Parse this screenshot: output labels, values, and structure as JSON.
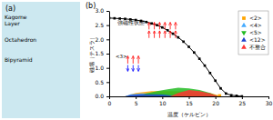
{
  "chart_data": [
    {
      "type": "diagram",
      "title": "(a)",
      "color": "#cce8f0",
      "annotations": [
        "Kagome\nLayer",
        "Octahedron",
        "Bipyramid"
      ]
    },
    {
      "type": "line",
      "title": "(b)",
      "x_label": "温度（ケルビン）",
      "y_label": "磁場（テスラ）",
      "xlim": [
        0,
        30
      ],
      "ylim": [
        0.0,
        3.0
      ],
      "xticks": [
        0,
        5,
        10,
        15,
        20,
        25,
        30
      ],
      "yticks": [
        {
          "value": 0.0,
          "label": "0.0"
        },
        0.5,
        {
          "value": 1.0,
          "label": "1.0"
        },
        1.5,
        {
          "value": 2.0,
          "label": "2.0"
        },
        2.5,
        {
          "value": 3.0,
          "label": "3.0"
        }
      ],
      "grid": false,
      "legend": "upper-right",
      "series": [
        {
          "name": "<2>",
          "type": "area",
          "color": "#FFA500",
          "marker": "square",
          "x": [
            3.0,
            5.0,
            8.0,
            12.0,
            16.0,
            19.0,
            20.5,
            21.0
          ],
          "values": [
            0.0,
            0.12,
            0.18,
            0.18,
            0.16,
            0.12,
            0.04,
            0.0
          ]
        },
        {
          "name": "<4>",
          "type": "area",
          "color": "#44AAFF",
          "marker": "triangle-up",
          "x": [
            3.0,
            4.0,
            6.0,
            9.0,
            11.0,
            12.5,
            13.0
          ],
          "values": [
            0.0,
            0.07,
            0.1,
            0.1,
            0.09,
            0.04,
            0.0
          ]
        },
        {
          "name": "<5>",
          "type": "area",
          "color": "#22BB22",
          "marker": "triangle-down",
          "x": [
            5.5,
            7.0,
            9.0,
            11.0,
            13.0,
            15.0,
            17.0,
            19.0,
            20.0,
            20.5
          ],
          "values": [
            0.0,
            0.1,
            0.18,
            0.25,
            0.3,
            0.28,
            0.22,
            0.12,
            0.04,
            0.0
          ]
        },
        {
          "name": "<12>",
          "type": "area",
          "color": "#2244CC",
          "marker": "triangle-up",
          "x": [
            3.0,
            4.0,
            6.0,
            8.0,
            10.0,
            11.5,
            12.0
          ],
          "values": [
            0.0,
            0.05,
            0.07,
            0.07,
            0.065,
            0.03,
            0.0
          ]
        },
        {
          "name": "不整合",
          "type": "area",
          "color": "#FF3333",
          "marker": "triangle-up",
          "x": [
            11.5,
            13.0,
            15.0,
            17.0,
            19.0,
            20.0,
            20.5
          ],
          "values": [
            0.0,
            0.12,
            0.22,
            0.18,
            0.1,
            0.04,
            0.0
          ]
        },
        {
          "type": "scatter",
          "color": "#FFA500",
          "marker": "square",
          "x": [
            20.8
          ],
          "values": [
            0.02
          ]
        },
        {
          "type": "line",
          "color": "#000000",
          "marker": "square",
          "x": [
            0,
            1,
            2,
            3,
            4,
            5,
            6,
            7,
            8,
            9,
            10,
            11,
            12,
            13,
            14,
            15,
            16,
            17,
            18,
            19,
            20,
            21,
            22,
            23,
            24,
            25
          ],
          "values": [
            2.75,
            2.74,
            2.73,
            2.72,
            2.7,
            2.68,
            2.65,
            2.61,
            2.56,
            2.5,
            2.42,
            2.32,
            2.2,
            2.07,
            1.92,
            1.74,
            1.54,
            1.32,
            1.08,
            0.82,
            0.55,
            0.28,
            0.1,
            0.04,
            0.02,
            0.0
          ]
        }
      ],
      "annotations": [
        {
          "text": "強磁性状態",
          "x": 1.5,
          "y": 2.65
        },
        {
          "text": "<3>",
          "x": 1.2,
          "y": 1.38
        }
      ],
      "arrows": [
        {
          "x": 7.5,
          "from": 2.05,
          "to": 2.3,
          "color": "red"
        },
        {
          "x": 7.5,
          "from": 2.35,
          "to": 2.6,
          "color": "red"
        },
        {
          "x": 8.5,
          "from": 2.05,
          "to": 2.3,
          "color": "red"
        },
        {
          "x": 8.5,
          "from": 2.35,
          "to": 2.6,
          "color": "red"
        },
        {
          "x": 9.5,
          "from": 2.05,
          "to": 2.3,
          "color": "red"
        },
        {
          "x": 9.5,
          "from": 2.35,
          "to": 2.6,
          "color": "red"
        },
        {
          "x": 10.5,
          "from": 2.05,
          "to": 2.3,
          "color": "red"
        },
        {
          "x": 10.5,
          "from": 2.35,
          "to": 2.6,
          "color": "red"
        },
        {
          "x": 11.5,
          "from": 2.05,
          "to": 2.3,
          "color": "red"
        },
        {
          "x": 11.5,
          "from": 2.35,
          "to": 2.6,
          "color": "red"
        },
        {
          "x": 12.5,
          "from": 2.05,
          "to": 2.3,
          "color": "red"
        },
        {
          "x": 12.5,
          "from": 2.35,
          "to": 2.6,
          "color": "red"
        },
        {
          "x": 3.5,
          "from": 1.15,
          "to": 1.42,
          "color": "red"
        },
        {
          "x": 3.5,
          "from": 1.1,
          "to": 0.88,
          "color": "blue"
        },
        {
          "x": 4.5,
          "from": 1.15,
          "to": 1.42,
          "color": "red"
        },
        {
          "x": 4.5,
          "from": 1.1,
          "to": 0.88,
          "color": "blue"
        },
        {
          "x": 5.5,
          "from": 1.15,
          "to": 1.42,
          "color": "red"
        },
        {
          "x": 5.5,
          "from": 1.1,
          "to": 0.88,
          "color": "blue"
        }
      ]
    }
  ]
}
